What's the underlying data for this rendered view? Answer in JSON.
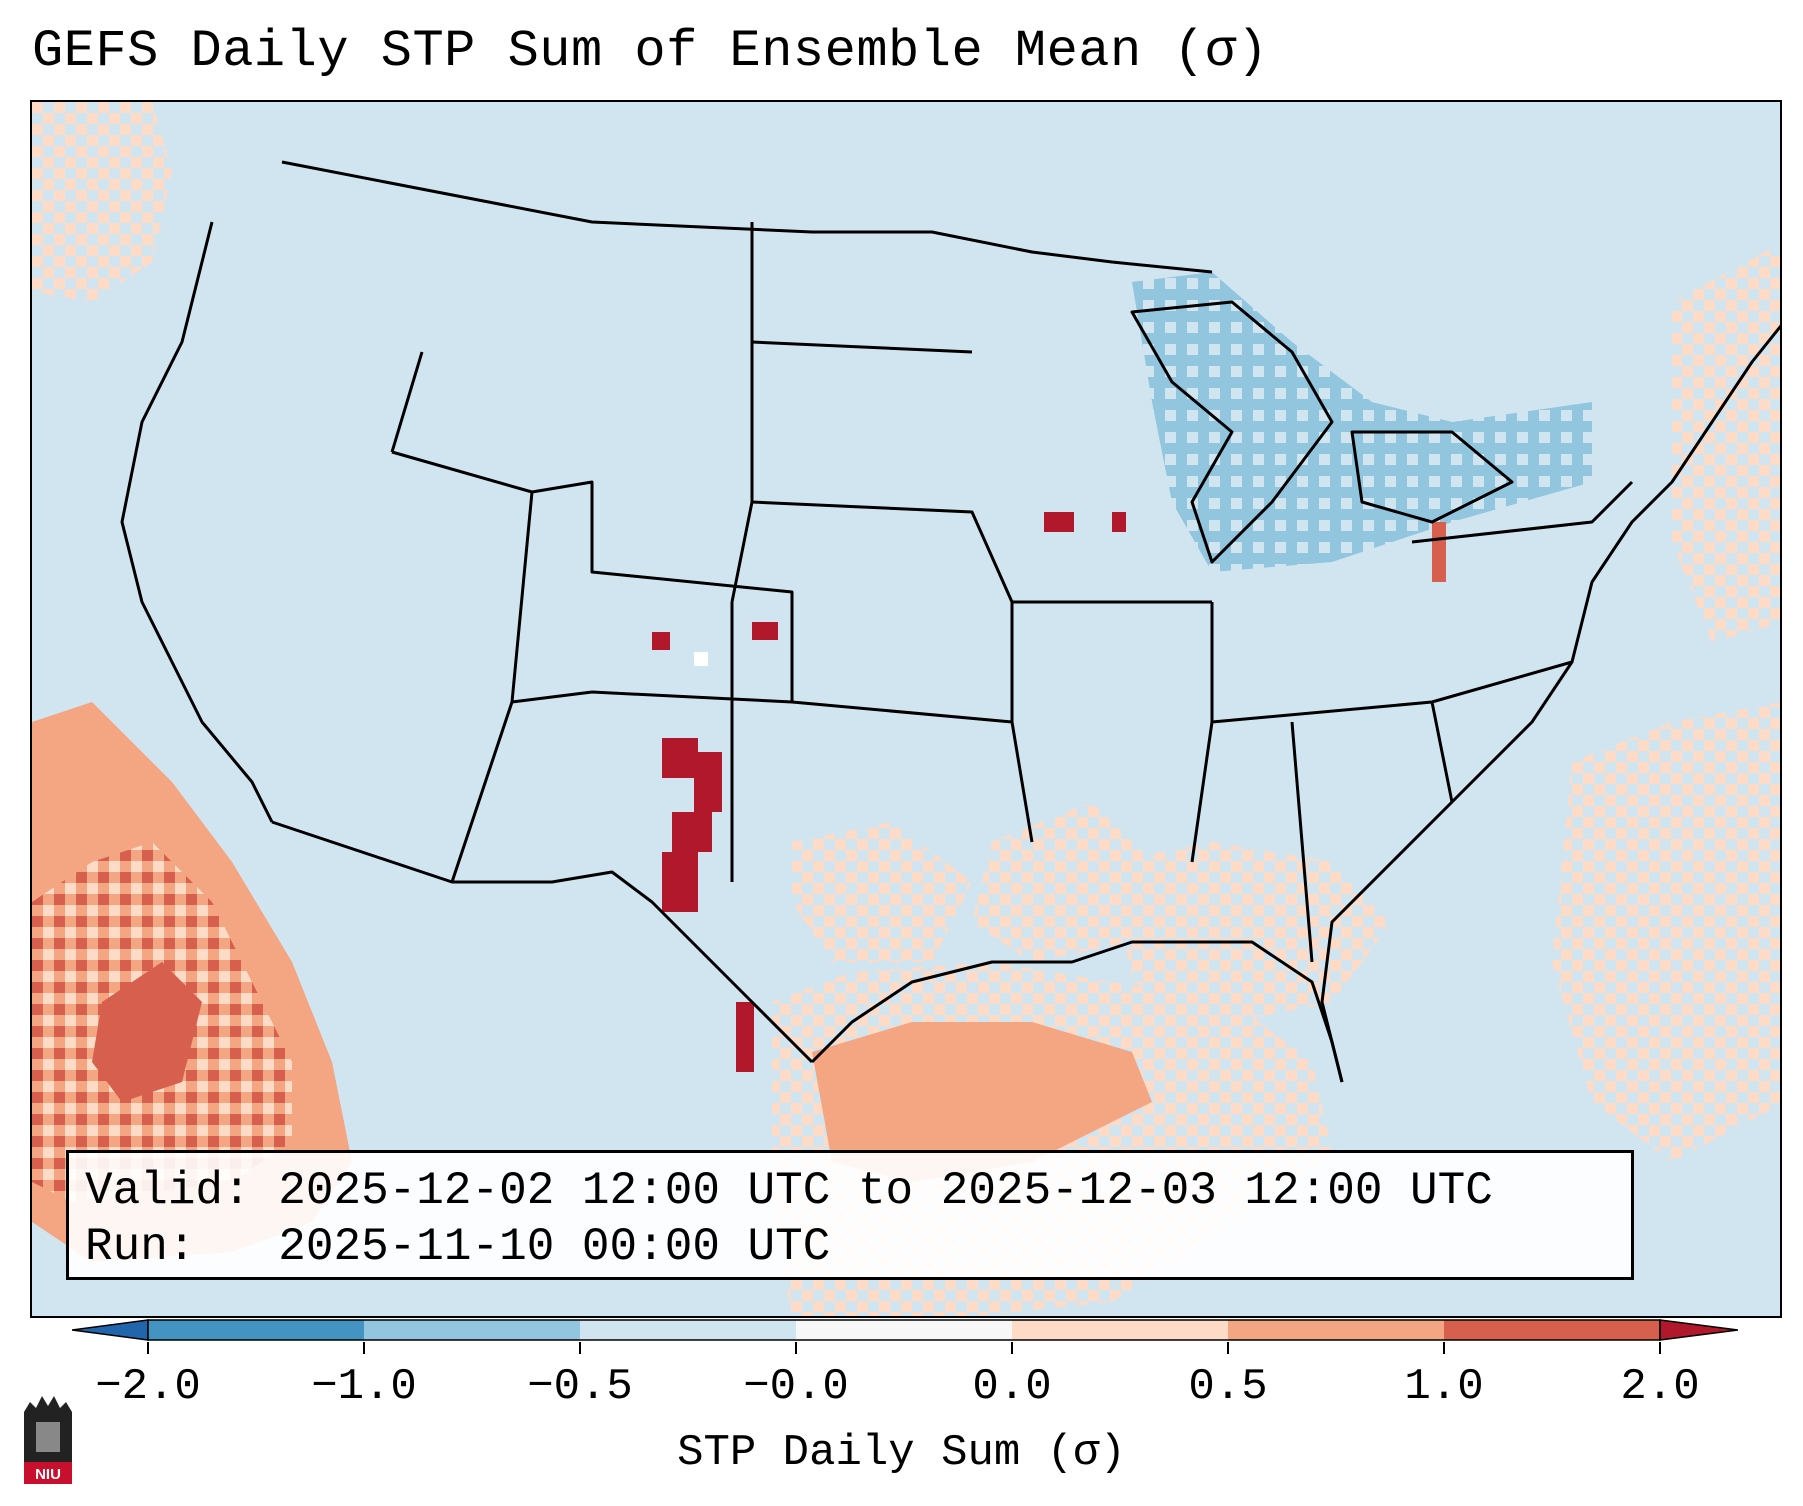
{
  "title": "GEFS Daily STP Sum of Ensemble Mean (σ)",
  "info": {
    "valid_label": "Valid:",
    "valid_value": "2025-12-02 12:00 UTC to 2025-12-03 12:00 UTC",
    "run_label": "Run:",
    "run_value": "2025-11-10 00:00 UTC"
  },
  "colorbar": {
    "label": "STP Daily Sum (σ)",
    "tick_labels": [
      "−2.0",
      "−1.0",
      "−0.5",
      "−0.0",
      "0.0",
      "0.5",
      "1.0",
      "2.0"
    ],
    "colors": [
      "#2166ac",
      "#4393c3",
      "#92c5de",
      "#d1e5f0",
      "#f7f7f7",
      "#fddbc7",
      "#f4a582",
      "#d6604d",
      "#b2182b"
    ],
    "extend": "both"
  },
  "map": {
    "projection": "Lambert conformal, CONUS",
    "background_color": "#d1e5f0",
    "categories": [
      {
        "name": "below -2.0",
        "color": "#2166ac"
      },
      {
        "name": "-2.0 to -1.0",
        "color": "#4393c3"
      },
      {
        "name": "-1.0 to -0.5",
        "color": "#92c5de"
      },
      {
        "name": "-0.5 to 0.0",
        "color": "#d1e5f0"
      },
      {
        "name": "0.0",
        "color": "#f7f7f7"
      },
      {
        "name": "0.0 to 0.5",
        "color": "#fddbc7"
      },
      {
        "name": "0.5 to 1.0",
        "color": "#f4a582"
      },
      {
        "name": "1.0 to 2.0",
        "color": "#d6604d"
      },
      {
        "name": "above 2.0",
        "color": "#b2182b"
      }
    ],
    "notable_regions": [
      {
        "area": "Eastern Pacific off Baja California",
        "category": "1.0 to 2.0"
      },
      {
        "area": "Western Gulf of Mexico / Texas coast",
        "category": "0.5 to 1.0"
      },
      {
        "area": "Eastern New Mexico / West Texas",
        "category": "above 2.0"
      },
      {
        "area": "Great Lakes",
        "category": "-1.0 to -0.5"
      },
      {
        "area": "Western Atlantic",
        "category": "0.0 to 0.5"
      }
    ]
  },
  "logo": {
    "text": "NIU"
  }
}
